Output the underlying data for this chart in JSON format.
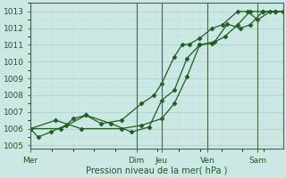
{
  "background_color": "#cce8e4",
  "grid_color_major": "#aacccc",
  "grid_color_minor": "#bbdddd",
  "line_color": "#1e5e1e",
  "marker_color": "#1e5e1e",
  "xlabel": "Pression niveau de la mer( hPa )",
  "ylim": [
    1004.8,
    1013.5
  ],
  "yticks": [
    1005,
    1006,
    1007,
    1008,
    1009,
    1010,
    1011,
    1012,
    1013
  ],
  "xlim": [
    0,
    100
  ],
  "day_labels": [
    "Mer",
    "Dim",
    "Jeu",
    "Ven",
    "Sam"
  ],
  "day_positions": [
    0,
    42,
    52,
    70,
    90
  ],
  "vline_positions": [
    0,
    42,
    52,
    70,
    90
  ],
  "series1_x": [
    0,
    3,
    8,
    14,
    17,
    22,
    28,
    36,
    44,
    49,
    52,
    57,
    60,
    63,
    67,
    72,
    76,
    82,
    86,
    90,
    95,
    100
  ],
  "series1_y": [
    1006.0,
    1005.5,
    1005.8,
    1006.2,
    1006.6,
    1006.8,
    1006.3,
    1006.5,
    1007.5,
    1008.0,
    1008.7,
    1010.3,
    1011.0,
    1011.05,
    1011.4,
    1012.0,
    1012.2,
    1013.0,
    1013.0,
    1012.5,
    1013.0,
    1013.0
  ],
  "series2_x": [
    0,
    10,
    20,
    36,
    44,
    52,
    57,
    62,
    67,
    73,
    78,
    83,
    87,
    92,
    97,
    100
  ],
  "series2_y": [
    1006.0,
    1006.5,
    1006.0,
    1006.0,
    1006.2,
    1006.6,
    1007.5,
    1009.1,
    1011.0,
    1011.2,
    1012.25,
    1012.0,
    1012.2,
    1013.0,
    1013.0,
    1013.0
  ],
  "series3_x": [
    0,
    12,
    22,
    32,
    40,
    47,
    52,
    57,
    62,
    67,
    72,
    77,
    82,
    87,
    92,
    97,
    100
  ],
  "series3_y": [
    1006.0,
    1006.0,
    1006.8,
    1006.3,
    1005.8,
    1006.1,
    1007.7,
    1008.3,
    1010.2,
    1011.0,
    1011.1,
    1011.5,
    1012.2,
    1013.0,
    1013.0,
    1013.0,
    1013.0
  ]
}
